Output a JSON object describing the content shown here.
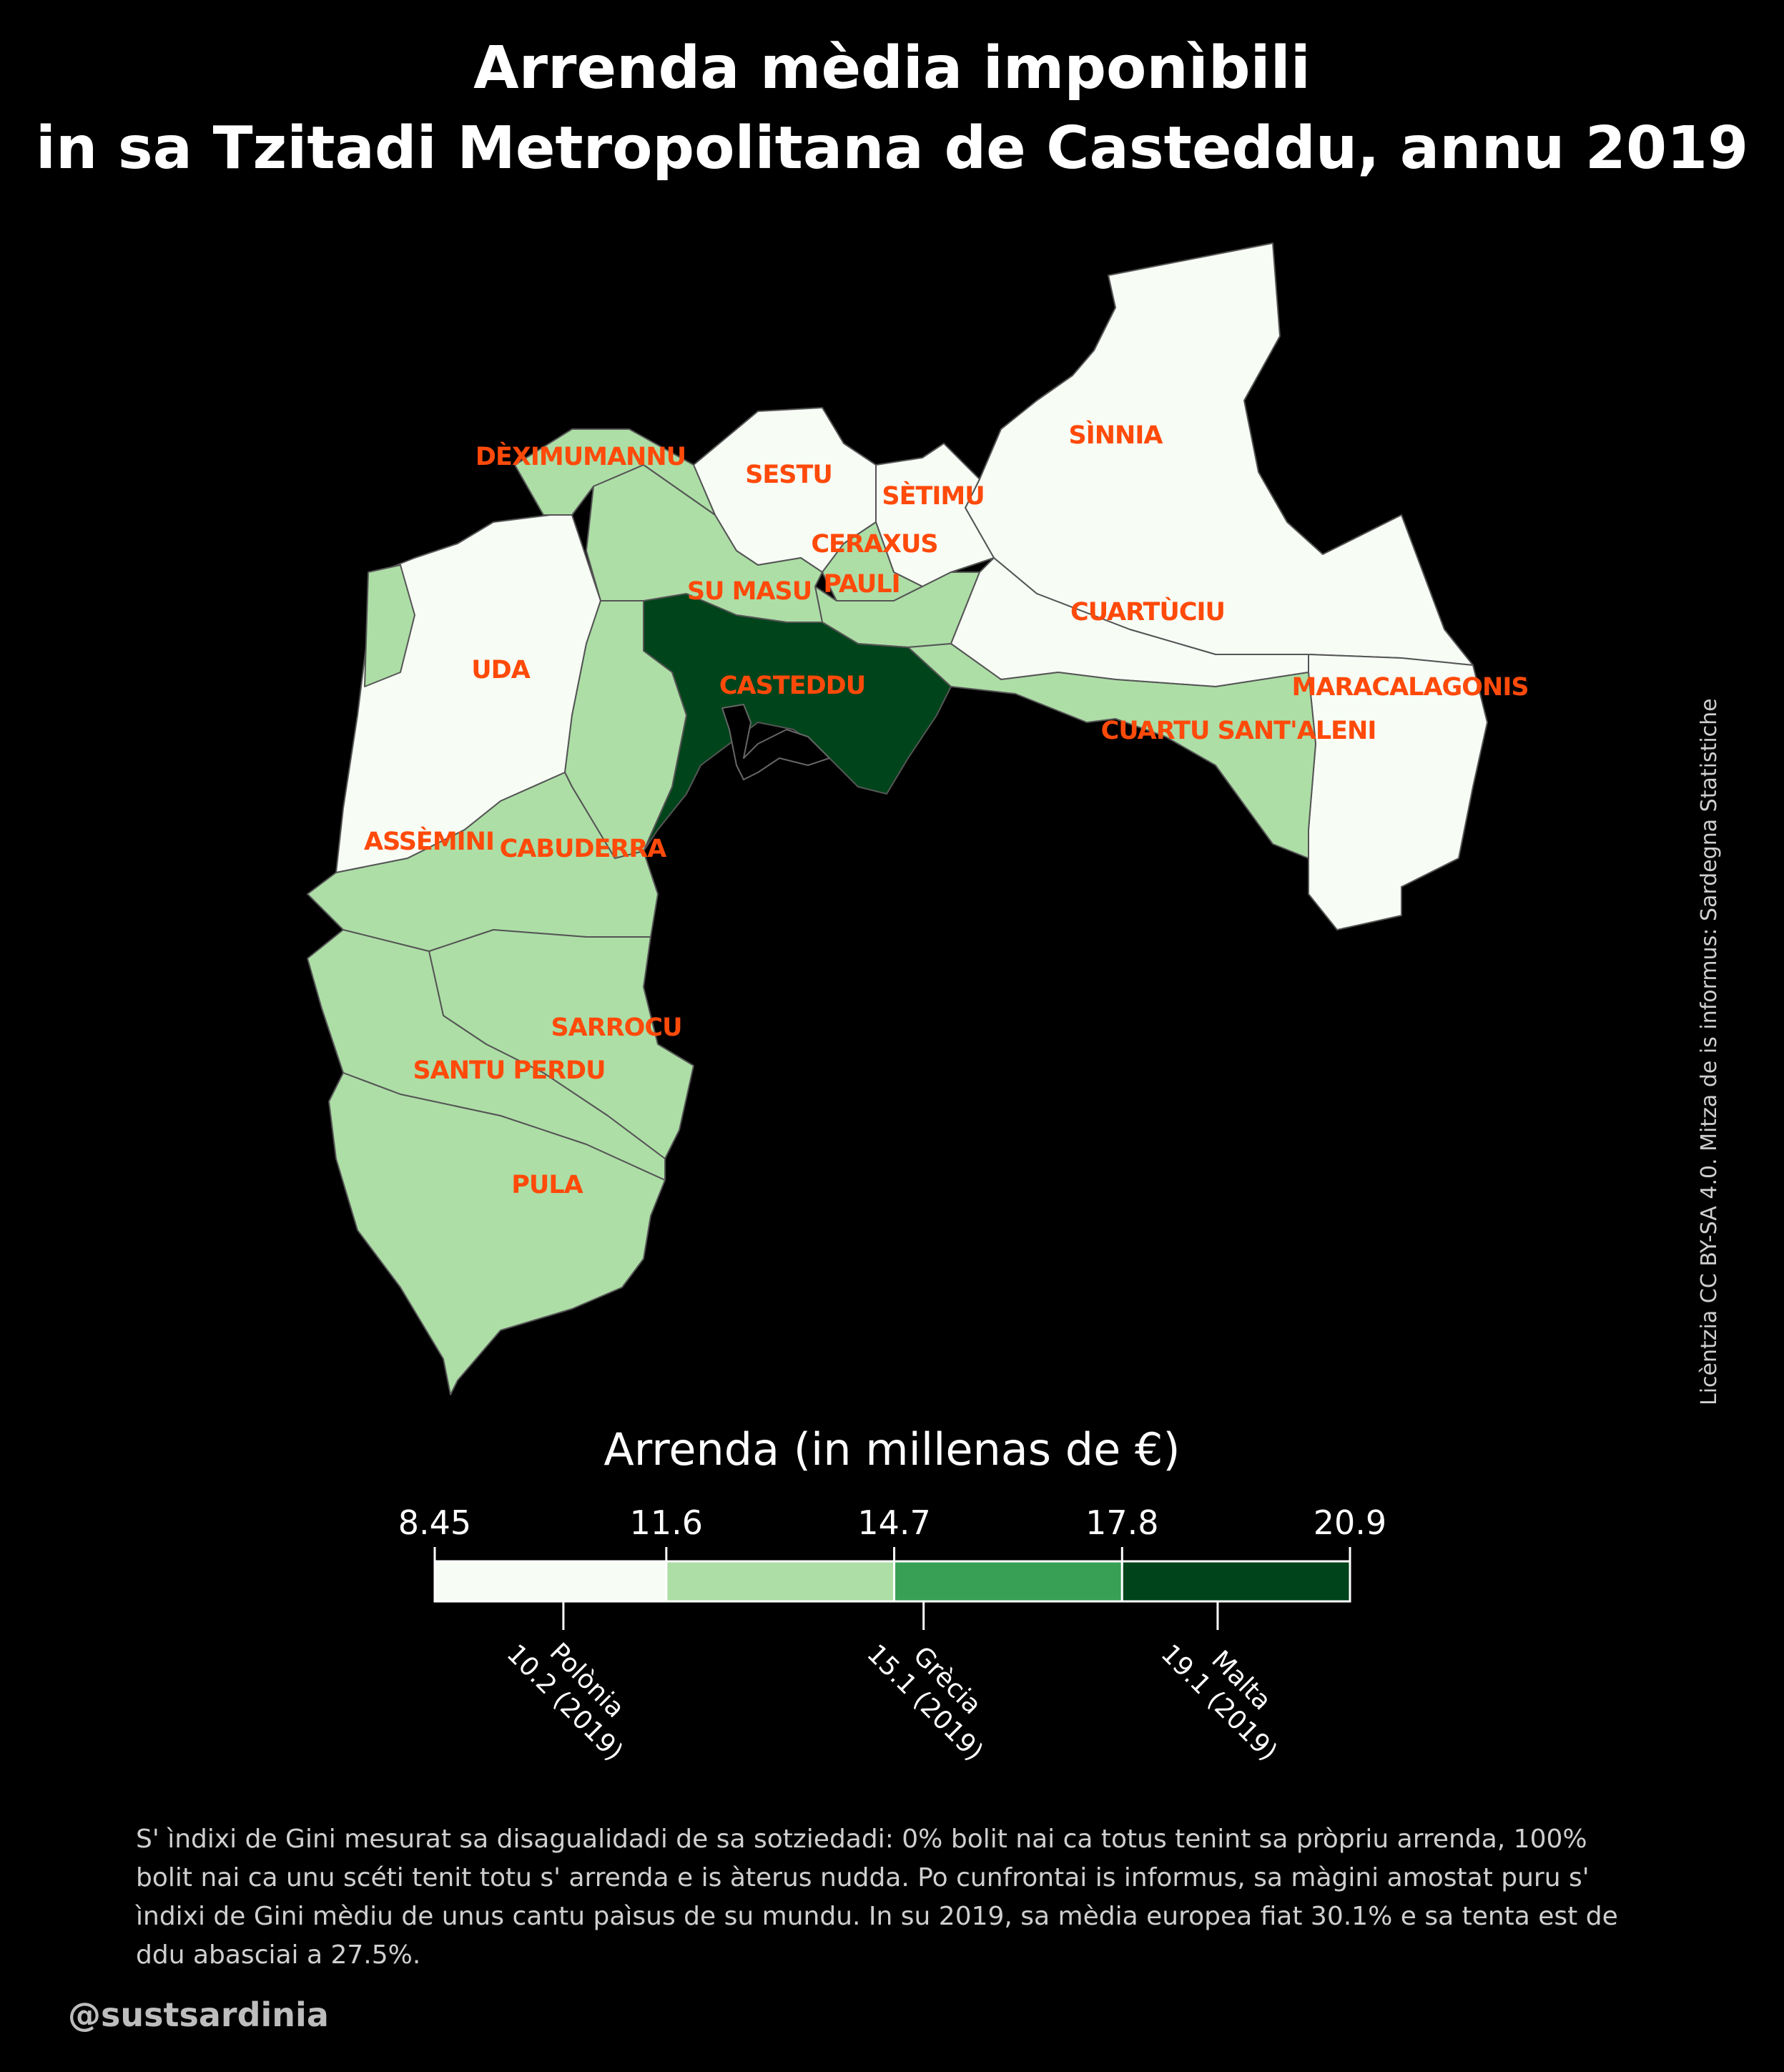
{
  "title": {
    "line1": "Arrenda mèdia imponìbili",
    "line2": "in sa Tzitadi Metropolitana de Casteddu, annu 2019"
  },
  "colors": {
    "class1": "#f7fcf5",
    "class2": "#addea6",
    "class3": "#37a055",
    "class4": "#00441b",
    "label": "#ff4a0a",
    "border": "#555555"
  },
  "municipalities": [
    {
      "name": "DÈXIMUMANNU",
      "class": 2
    },
    {
      "name": "SESTU",
      "class": 1
    },
    {
      "name": "SÈTIMU",
      "class": 1
    },
    {
      "name": "SÌNNIA",
      "class": 1
    },
    {
      "name": "CERAXUS",
      "class": 2
    },
    {
      "name": "PAULI",
      "class": 2
    },
    {
      "name": "SU MASU",
      "class": 2
    },
    {
      "name": "CUARTÙCIU",
      "class": 1
    },
    {
      "name": "UDA",
      "class": 1
    },
    {
      "name": "CASTEDDU",
      "class": 4
    },
    {
      "name": "MARACALAGONIS",
      "class": 1
    },
    {
      "name": "CUARTU SANT'ALENI",
      "class": 2
    },
    {
      "name": "ASSÈMINI",
      "class": 2
    },
    {
      "name": "CABUDERRA",
      "class": 2
    },
    {
      "name": "SARROCU",
      "class": 2
    },
    {
      "name": "SANTU PERDU",
      "class": 2
    },
    {
      "name": "PULA",
      "class": 2
    }
  ],
  "legend": {
    "title": "Arrenda (in millenas de €)",
    "breaks": [
      "8.45",
      "11.6",
      "14.7",
      "17.8",
      "20.9"
    ],
    "break_values": [
      8.45,
      11.6,
      14.7,
      17.8,
      20.9
    ],
    "references": [
      {
        "country": "Polònia",
        "label": "10.2 (2019)",
        "value": 10.2
      },
      {
        "country": "Grècia",
        "label": "15.1 (2019)",
        "value": 15.1
      },
      {
        "country": "Malta",
        "label": "19.1 (2019)",
        "value": 19.1
      }
    ]
  },
  "source": "Licèntzia CC BY-SA 4.0. Mitza de is informus: Sardegna Statistiche",
  "note": "S' ìndixi de Gini mesurat sa disagualidadi de sa sotziedadi: 0% bolit nai ca totus tenint sa pròpriu arrenda, 100% bolit nai ca unu scéti tenit totu s' arrenda e is àterus nudda. Po cunfrontai is informus, sa màgini amostat puru s' ìndixi de Gini mèdiu de unus cantu paìsus de su mundu. In su 2019, sa mèdia europea fiat 30.1% e sa tenta est de ddu abasciai a 27.5%.",
  "handle": "@sustsardinia"
}
